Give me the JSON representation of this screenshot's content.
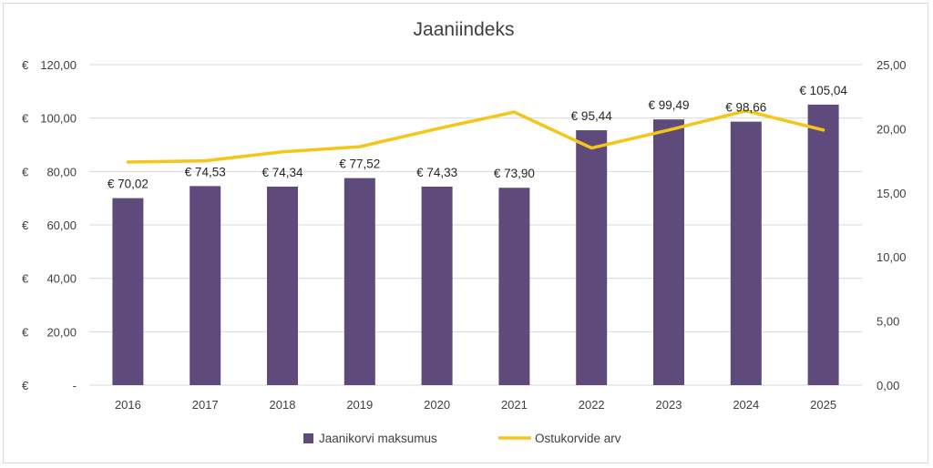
{
  "chart_data": {
    "type": "bar",
    "title": "Jaaniindeks",
    "categories": [
      "2016",
      "2017",
      "2018",
      "2019",
      "2020",
      "2021",
      "2022",
      "2023",
      "2024",
      "2025"
    ],
    "series": [
      {
        "name": "Jaanikorvi maksumus",
        "type": "bar",
        "axis": "left",
        "color": "#5f4b7b",
        "values": [
          70.02,
          74.53,
          74.34,
          77.52,
          74.33,
          73.9,
          95.44,
          99.49,
          98.66,
          105.04
        ],
        "labels": [
          "€ 70,02",
          "€ 74,53",
          "€ 74,34",
          "€ 77,52",
          "€ 74,33",
          "€ 73,90",
          "€ 95,44",
          "€ 99,49",
          "€ 98,66",
          "€ 105,04"
        ]
      },
      {
        "name": "Ostukorvide arv",
        "type": "line",
        "axis": "right",
        "color": "#f5c518",
        "values": [
          17.4,
          17.5,
          18.2,
          18.6,
          20.0,
          21.3,
          18.5,
          19.9,
          21.4,
          19.9
        ]
      }
    ],
    "y_left": {
      "range": [
        0,
        120
      ],
      "ticks": [
        0,
        20,
        40,
        60,
        80,
        100,
        120
      ],
      "tick_labels": [
        "€ -",
        "€ 20,00",
        "€ 40,00",
        "€ 60,00",
        "€ 80,00",
        "€ 100,00",
        "€ 120,00"
      ]
    },
    "y_right": {
      "range": [
        0,
        25
      ],
      "ticks": [
        0,
        5,
        10,
        15,
        20,
        25
      ],
      "tick_labels": [
        "0,00",
        "5,00",
        "10,00",
        "15,00",
        "20,00",
        "25,00"
      ]
    },
    "grid": true,
    "legend_position": "bottom"
  }
}
